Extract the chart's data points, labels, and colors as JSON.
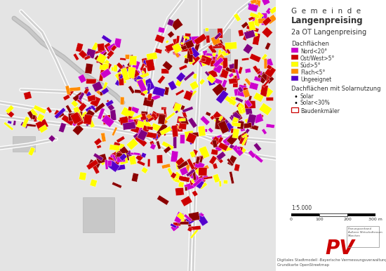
{
  "title_line1": "G  e  m  e  i  n  d  e",
  "title_line2": "Langenpreising",
  "subtitle": "2a OT Langenpreising",
  "legend_title1": "Dachflächen",
  "legend_items": [
    {
      "color": "#CC00CC",
      "label": "Nord<20°"
    },
    {
      "color": "#CC0000",
      "label": "Ost/West>5°"
    },
    {
      "color": "#FFFF00",
      "label": "Süd>5°"
    },
    {
      "color": "#FF8C00",
      "label": "Flach<5°"
    },
    {
      "color": "#5500CC",
      "label": "Ungeeignet"
    }
  ],
  "legend_title2": "Dachflächen mit Solarnutzung",
  "legend_solar1": "Solar",
  "legend_solar2": "Solar<30%",
  "legend_baudenkmal": "Baudenkmäler",
  "scale_label": "1:5.000",
  "scale_ticks": [
    "0",
    "100",
    "200",
    "300 m"
  ],
  "footer_line1": "Digitales Stadtmodell -Bayerische Vermessungsverwaltung",
  "footer_line2": "Grundkarte OpenStreetmap",
  "pv_text": "PV",
  "panel_bg": "#ffffff",
  "map_bg": "#e4e4e4"
}
